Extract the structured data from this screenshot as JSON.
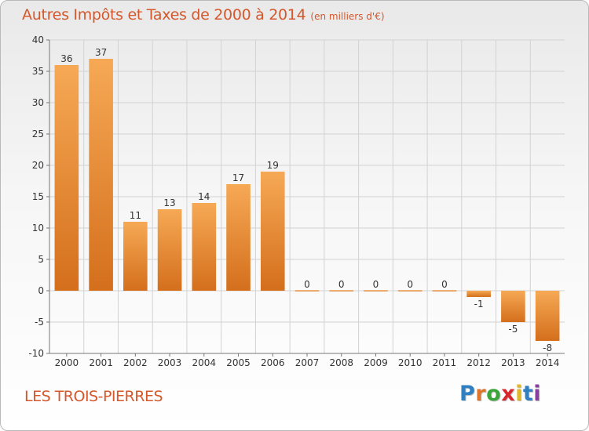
{
  "header": {
    "title": "Autres Impôts et Taxes de 2000 à 2014",
    "subtitle": "(en milliers d'€)"
  },
  "footer": {
    "place": "LES TROIS-PIERRES",
    "logo": "Proxiti"
  },
  "colors": {
    "title": "#d4582b",
    "bar_light": "#f6a955",
    "bar_dark": "#d46f1c",
    "logo_letters": [
      "#2f7fc1",
      "#e0752a",
      "#3aa639",
      "#d8282e",
      "#e0b62a",
      "#2f7fc1",
      "#8a3fa0"
    ]
  },
  "chart_data": {
    "type": "bar",
    "title": "Autres Impôts et Taxes de 2000 à 2014",
    "subtitle": "(en milliers d'€)",
    "xlabel": "",
    "ylabel": "",
    "categories": [
      "2000",
      "2001",
      "2002",
      "2003",
      "2004",
      "2005",
      "2006",
      "2007",
      "2008",
      "2009",
      "2010",
      "2011",
      "2012",
      "2013",
      "2014"
    ],
    "values": [
      36,
      37,
      11,
      13,
      14,
      17,
      19,
      0,
      0,
      0,
      0,
      0,
      -1,
      -5,
      -8
    ],
    "data_labels": [
      "36",
      "37",
      "11",
      "13",
      "14",
      "17",
      "19",
      "0",
      "0",
      "0",
      "0",
      "0",
      "-1",
      "-5",
      "-8"
    ],
    "ylim": [
      -10,
      40
    ],
    "yticks": [
      -10,
      -5,
      0,
      5,
      10,
      15,
      20,
      25,
      30,
      35,
      40
    ],
    "ytick_labels": [
      "-10",
      "-5",
      "0",
      "5",
      "10",
      "15",
      "20",
      "25",
      "30",
      "35",
      "40"
    ],
    "grid": true,
    "legend": "none"
  }
}
